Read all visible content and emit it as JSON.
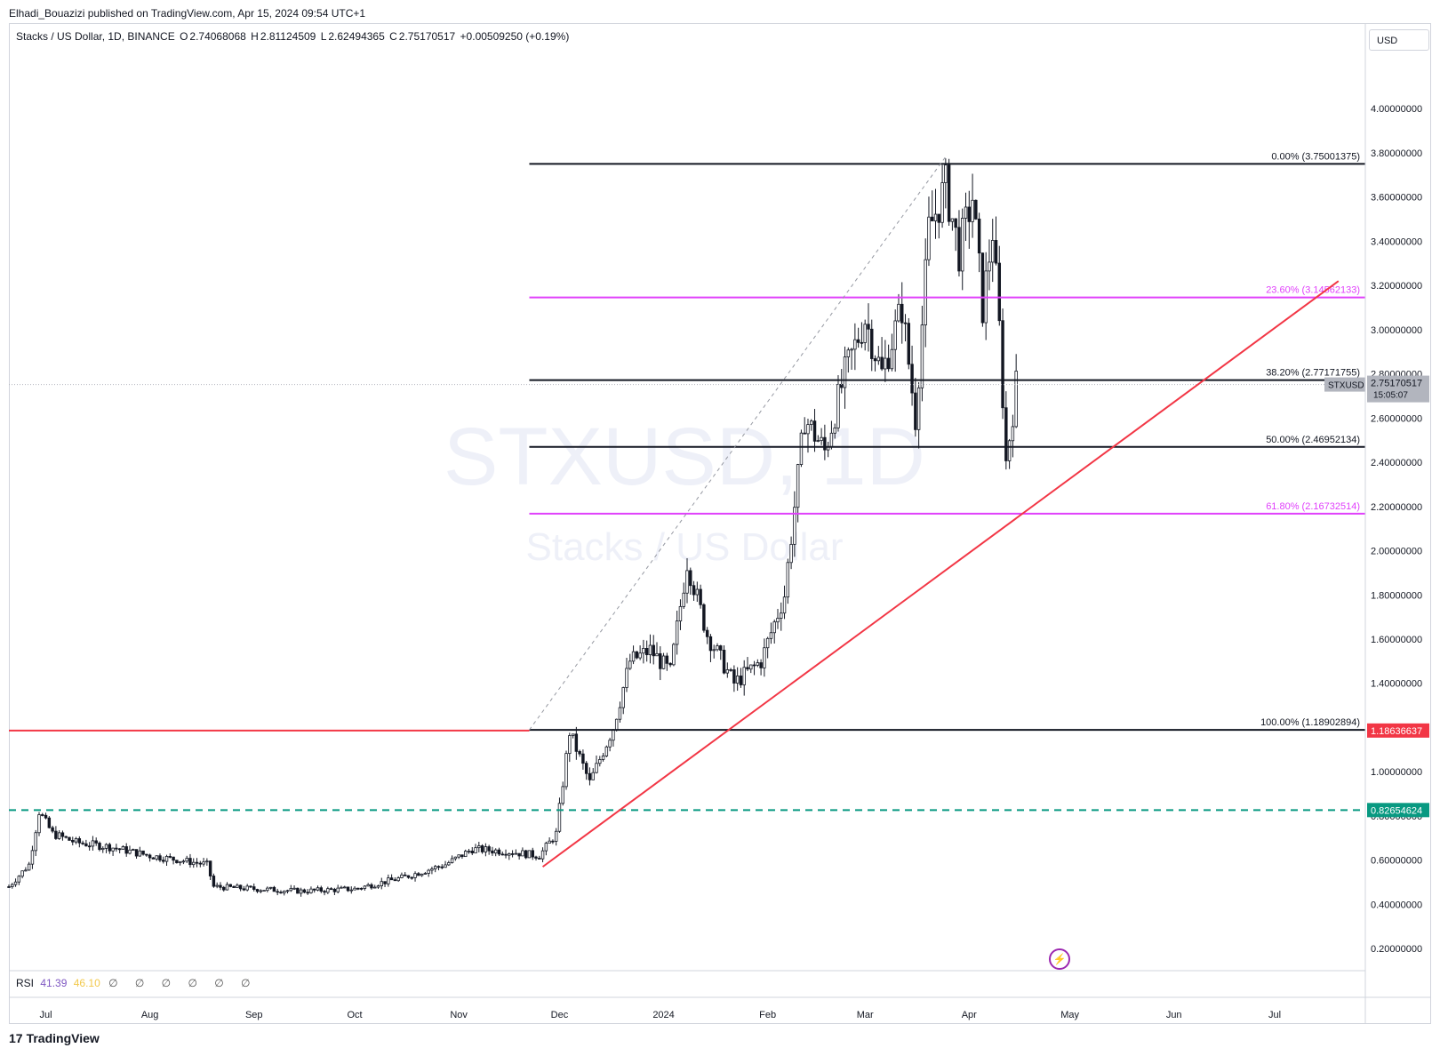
{
  "header": {
    "published": "Elhadi_Bouazizi published on TradingView.com, Apr 15, 2024 09:54 UTC+1"
  },
  "legend": {
    "symbol": "Stacks / US Dollar, 1D, BINANCE",
    "open_label": "O",
    "open": "2.74068068",
    "high_label": "H",
    "high": "2.81124509",
    "low_label": "L",
    "low": "2.62494365",
    "close_label": "C",
    "close": "2.75170517",
    "change": "+0.00509250 (+0.19%)"
  },
  "currency": "USD",
  "watermark": {
    "symbol": "STXUSD, 1D",
    "name": "Stacks / US Dollar"
  },
  "rsi": {
    "label": "RSI",
    "value1": "41.39",
    "value2": "46.10",
    "icons": "∅ ∅ ∅ ∅ ∅ ∅"
  },
  "branding": {
    "logo_text": "TradingView",
    "logo_mark": "17"
  },
  "colors": {
    "fib_black": "#131722",
    "fib_magenta": "#e040fb",
    "trend_red": "#f23645",
    "support_teal": "#089981",
    "price_tag": "#b2b5be",
    "red_tag": "#f23645"
  },
  "chart_data": {
    "type": "candlestick",
    "ylim": [
      0.1,
      4.25
    ],
    "y_ticks": [
      "4.00000000",
      "3.80000000",
      "3.60000000",
      "3.40000000",
      "3.20000000",
      "3.00000000",
      "2.80000000",
      "2.60000000",
      "2.40000000",
      "2.20000000",
      "2.00000000",
      "1.80000000",
      "1.60000000",
      "1.40000000",
      "1.20000000",
      "1.00000000",
      "0.80000000",
      "0.60000000",
      "0.40000000",
      "0.20000000"
    ],
    "y_tick_values": [
      4.0,
      3.8,
      3.6,
      3.4,
      3.2,
      3.0,
      2.8,
      2.6,
      2.4,
      2.2,
      2.0,
      1.8,
      1.6,
      1.4,
      1.2,
      1.0,
      0.8,
      0.6,
      0.4,
      0.2
    ],
    "x_ticks": [
      "Jul",
      "Aug",
      "Sep",
      "Oct",
      "Nov",
      "Dec",
      "2024",
      "Feb",
      "Mar",
      "Apr",
      "May",
      "Jun",
      "Jul"
    ],
    "x_tick_dates": [
      "2023-07-01",
      "2023-08-01",
      "2023-09-01",
      "2023-10-01",
      "2023-11-01",
      "2023-12-01",
      "2024-01-01",
      "2024-02-01",
      "2024-03-01",
      "2024-04-01",
      "2024-05-01",
      "2024-06-01",
      "2024-07-01"
    ],
    "x_range": [
      "2023-06-20",
      "2024-07-28"
    ],
    "fib_levels": [
      {
        "label": "0.00% (3.75001375)",
        "value": 3.75001375,
        "color": "#131722"
      },
      {
        "label": "23.60% (3.14562133)",
        "value": 3.14562133,
        "color": "#e040fb"
      },
      {
        "label": "38.20% (2.77171755)",
        "value": 2.77171755,
        "color": "#131722"
      },
      {
        "label": "50.00% (2.46952134)",
        "value": 2.46952134,
        "color": "#131722"
      },
      {
        "label": "61.80% (2.16732514)",
        "value": 2.16732514,
        "color": "#e040fb"
      },
      {
        "label": "100.00% (1.18902894)",
        "value": 1.18902894,
        "color": "#131722"
      }
    ],
    "fib_start_date": "2023-11-22",
    "fib_end_date": "2024-03-25",
    "trendline": {
      "from": [
        "2023-11-26",
        0.57
      ],
      "to": [
        "2024-07-20",
        3.22
      ]
    },
    "horizontal_red": 1.18636637,
    "horizontal_teal": 0.82654624,
    "price_tags": [
      {
        "text": "1.18636637",
        "value": 1.18636637,
        "color": "#f23645"
      },
      {
        "text": "0.82654624",
        "value": 0.82654624,
        "color": "#089981"
      }
    ],
    "last_price": {
      "symbol": "STXUSD",
      "price": "2.75170517",
      "countdown": "15:05:07",
      "value": 2.75170517
    },
    "series_keypoints": [
      [
        "2023-06-20",
        0.48
      ],
      [
        "2023-06-26",
        0.58
      ],
      [
        "2023-06-29",
        0.82
      ],
      [
        "2023-07-03",
        0.72
      ],
      [
        "2023-07-10",
        0.68
      ],
      [
        "2023-07-20",
        0.66
      ],
      [
        "2023-08-01",
        0.62
      ],
      [
        "2023-08-10",
        0.6
      ],
      [
        "2023-08-18",
        0.58
      ],
      [
        "2023-08-20",
        0.48
      ],
      [
        "2023-09-01",
        0.47
      ],
      [
        "2023-09-15",
        0.46
      ],
      [
        "2023-10-01",
        0.47
      ],
      [
        "2023-10-15",
        0.52
      ],
      [
        "2023-10-28",
        0.58
      ],
      [
        "2023-11-05",
        0.65
      ],
      [
        "2023-11-15",
        0.64
      ],
      [
        "2023-11-25",
        0.62
      ],
      [
        "2023-11-30",
        0.72
      ],
      [
        "2023-12-04",
        1.18
      ],
      [
        "2023-12-10",
        0.95
      ],
      [
        "2023-12-17",
        1.2
      ],
      [
        "2023-12-22",
        1.5
      ],
      [
        "2023-12-28",
        1.55
      ],
      [
        "2024-01-03",
        1.45
      ],
      [
        "2024-01-08",
        1.95
      ],
      [
        "2024-01-14",
        1.62
      ],
      [
        "2024-01-22",
        1.4
      ],
      [
        "2024-01-30",
        1.5
      ],
      [
        "2024-02-06",
        1.8
      ],
      [
        "2024-02-12",
        2.6
      ],
      [
        "2024-02-18",
        2.45
      ],
      [
        "2024-02-24",
        2.8
      ],
      [
        "2024-03-01",
        3.05
      ],
      [
        "2024-03-06",
        2.8
      ],
      [
        "2024-03-12",
        3.1
      ],
      [
        "2024-03-16",
        2.6
      ],
      [
        "2024-03-20",
        3.45
      ],
      [
        "2024-03-25",
        3.65
      ],
      [
        "2024-03-29",
        3.35
      ],
      [
        "2024-04-02",
        3.6
      ],
      [
        "2024-04-05",
        3.1
      ],
      [
        "2024-04-08",
        3.45
      ],
      [
        "2024-04-10",
        3.0
      ],
      [
        "2024-04-12",
        2.4
      ],
      [
        "2024-04-15",
        2.75
      ]
    ]
  }
}
